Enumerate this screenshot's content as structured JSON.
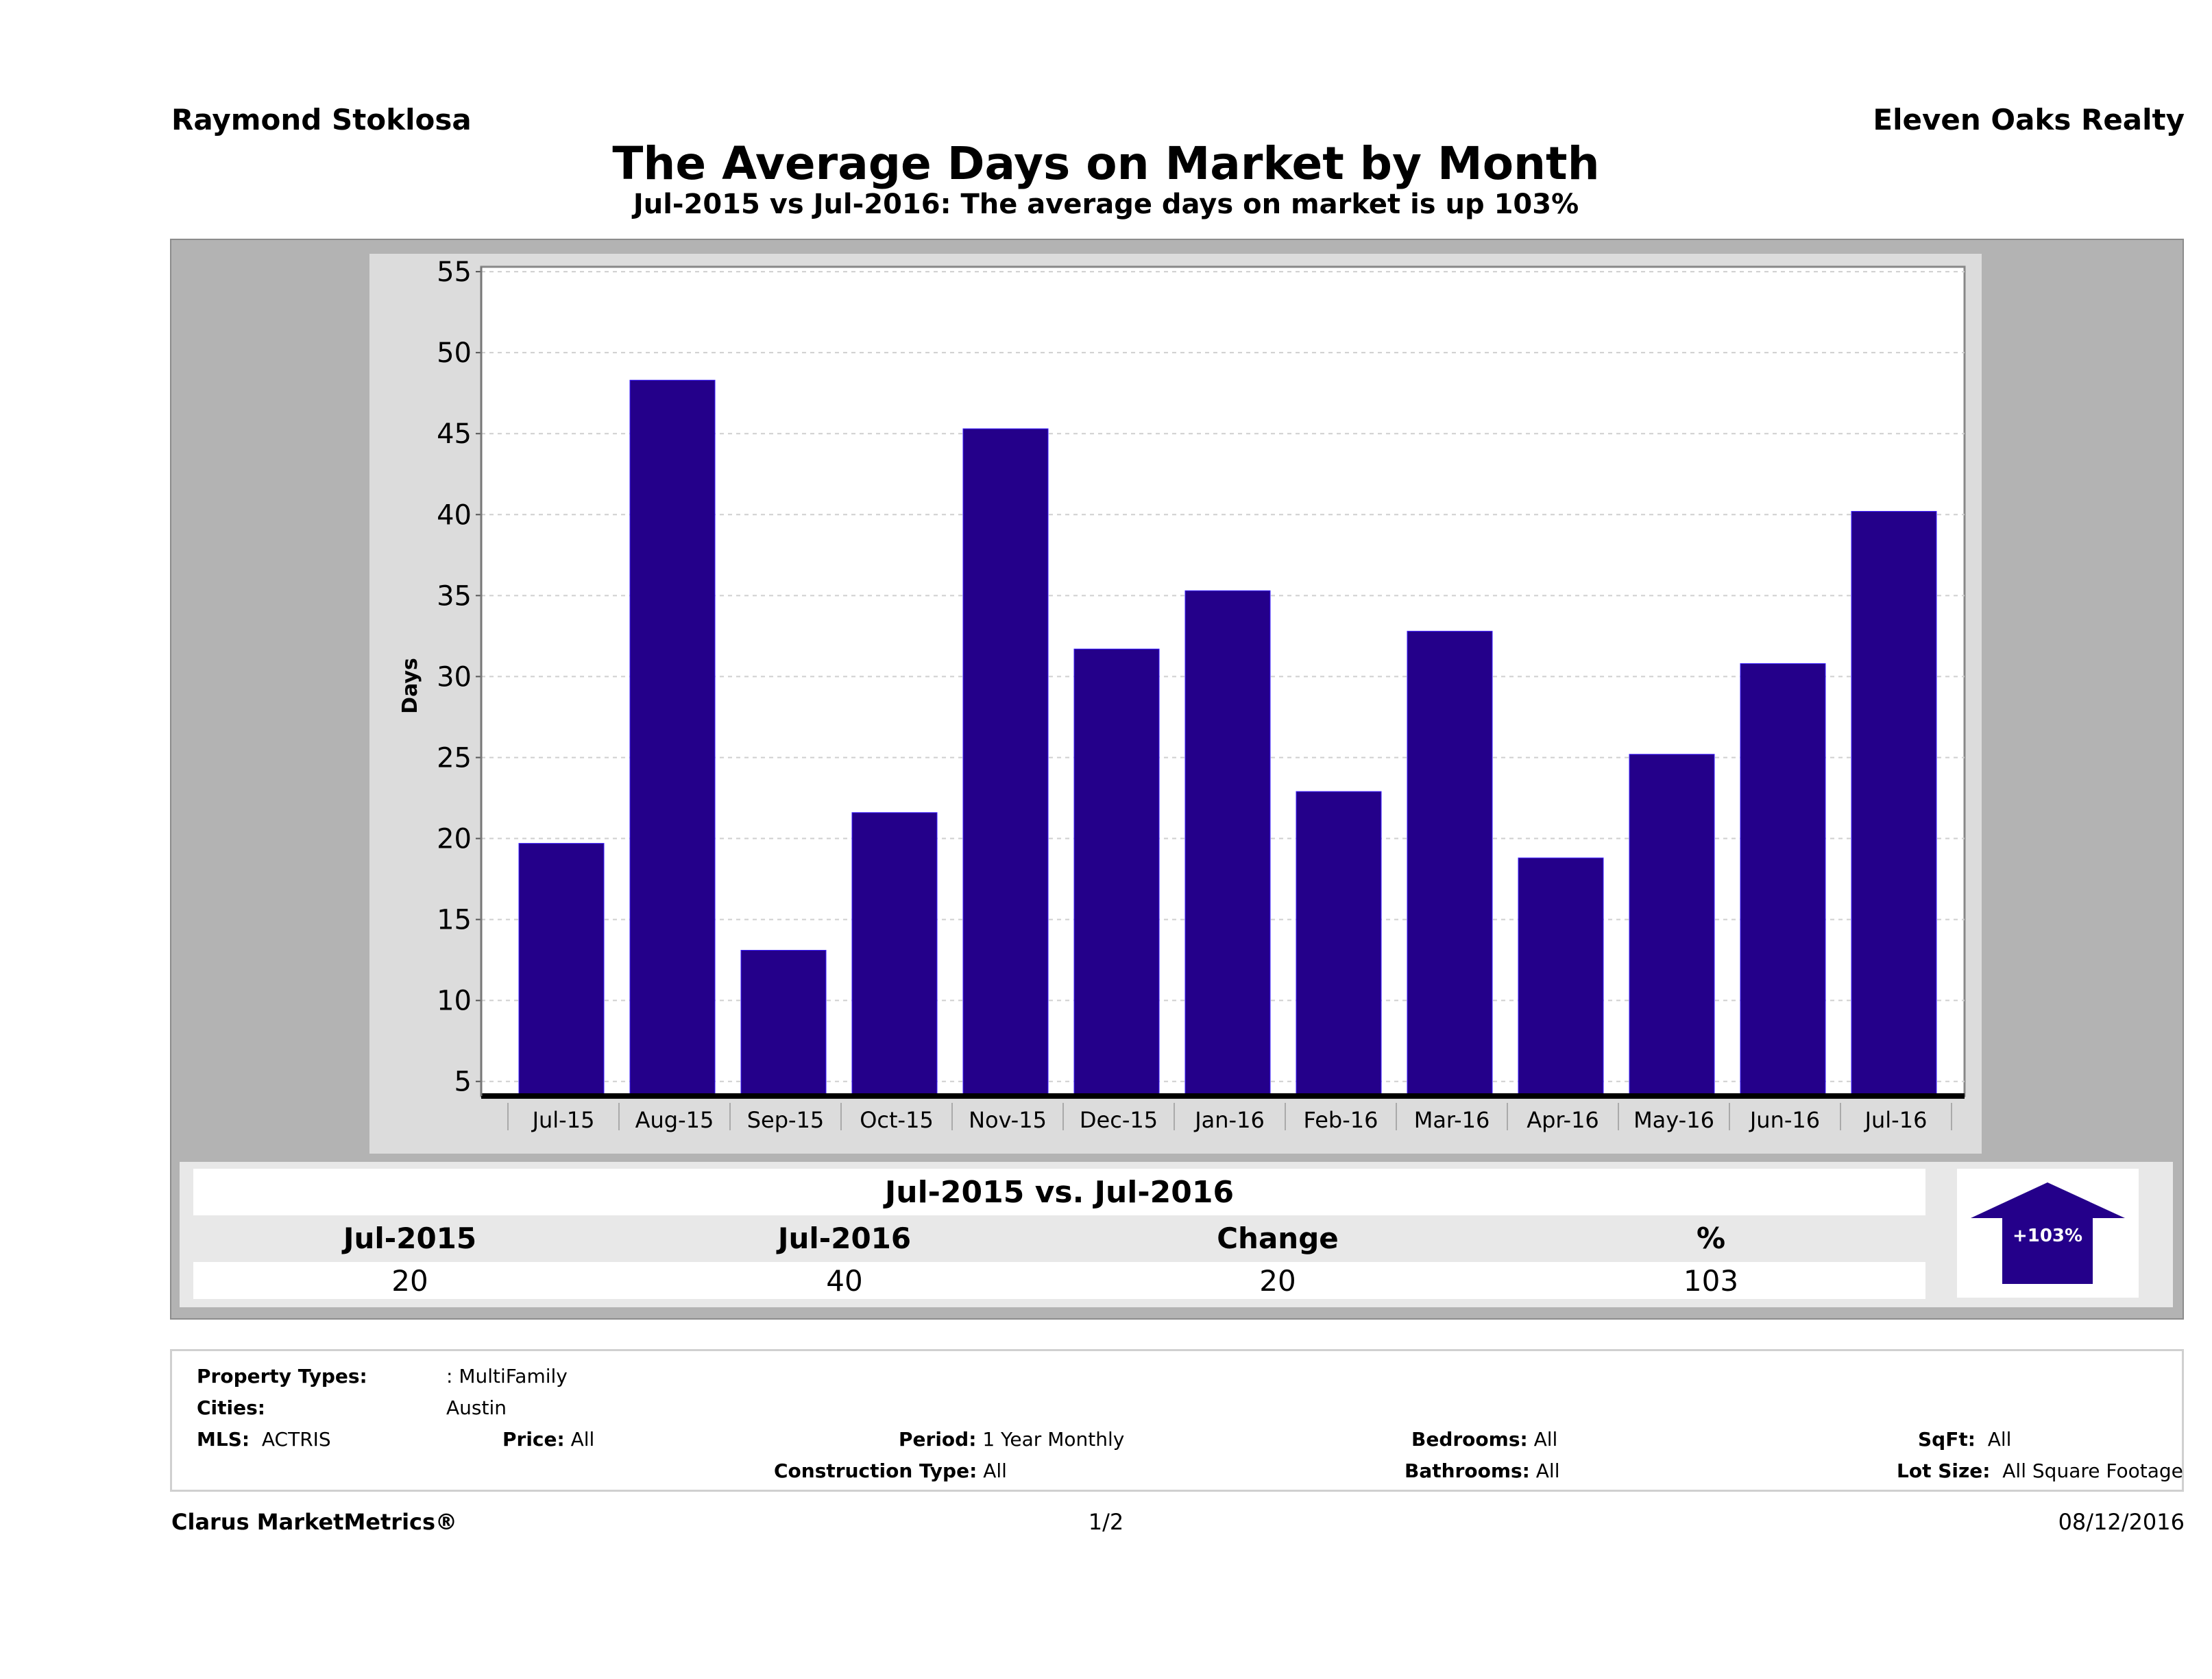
{
  "header": {
    "agent_name": "Raymond Stoklosa",
    "company_name": "Eleven Oaks Realty",
    "title": "The Average Days on Market by Month",
    "subtitle": "Jul-2015 vs Jul-2016: The average days on market is up 103%"
  },
  "colors": {
    "bar": "#24008a",
    "frame": "#b3b3b3",
    "panel": "#dcdcdc",
    "plot": "#ffffff"
  },
  "chart_data": {
    "type": "bar",
    "title": "The Average Days on Market by Month",
    "subtitle": "Jul-2015 vs Jul-2016: The average days on market is up 103%",
    "xlabel": "",
    "ylabel": "Days",
    "categories": [
      "Jul-15",
      "Aug-15",
      "Sep-15",
      "Oct-15",
      "Nov-15",
      "Dec-15",
      "Jan-16",
      "Feb-16",
      "Mar-16",
      "Apr-16",
      "May-16",
      "Jun-16",
      "Jul-16"
    ],
    "values": [
      19.7,
      48.3,
      13.1,
      21.6,
      45.3,
      31.7,
      35.3,
      22.9,
      32.8,
      18.8,
      25.2,
      30.8,
      40.2
    ],
    "ylim": [
      4.1,
      55.3
    ],
    "yticks": [
      5,
      10,
      15,
      20,
      25,
      30,
      35,
      40,
      45,
      50,
      55
    ],
    "grid": true,
    "legend": "none"
  },
  "summary": {
    "title": "Jul-2015 vs. Jul-2016",
    "columns": [
      "Jul-2015",
      "Jul-2016",
      "Change",
      "%"
    ],
    "values": [
      "20",
      "40",
      "20",
      "103"
    ],
    "badge": "+103%",
    "badge_icon": "up-arrow-icon"
  },
  "filters": {
    "property_types_label": "Property Types:",
    "property_types_value": ": MultiFamily",
    "cities_label": "Cities:",
    "cities_value": "Austin",
    "mls_label": "MLS:",
    "mls_value": "ACTRIS",
    "price_label": "Price:",
    "price_value": "All",
    "period_label": "Period:",
    "period_value": "1 Year Monthly",
    "construction_label": "Construction Type:",
    "construction_value": "All",
    "bedrooms_label": "Bedrooms:",
    "bedrooms_value": "All",
    "bathrooms_label": "Bathrooms:",
    "bathrooms_value": "All",
    "sqft_label": "SqFt:",
    "sqft_value": "All",
    "lot_label": "Lot Size:",
    "lot_value": "All Square Footage"
  },
  "footer": {
    "brand": "Clarus MarketMetrics®",
    "page": "1/2",
    "date": "08/12/2016"
  }
}
